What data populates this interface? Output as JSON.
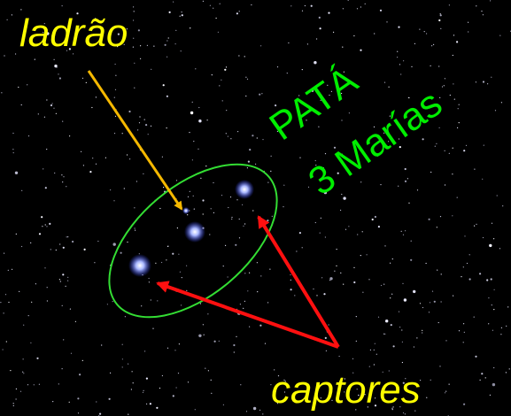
{
  "labels": {
    "thief": "ladrão",
    "name_1": "PATÁ",
    "name_2": "3 Marías",
    "captors": "captores"
  }
}
